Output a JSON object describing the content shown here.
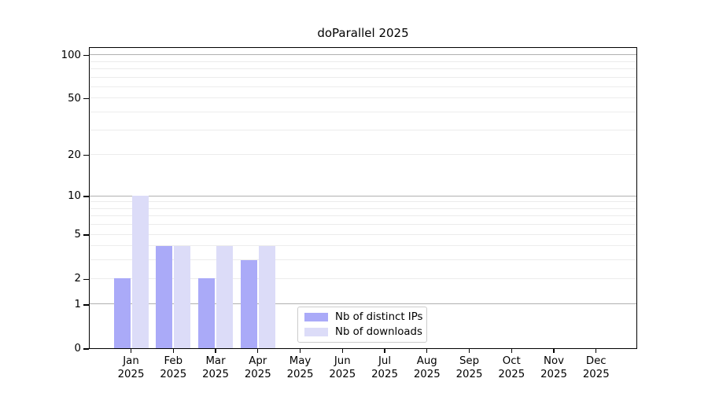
{
  "title": "doParallel 2025",
  "colors": {
    "ips": "#aaaaf8",
    "downloads": "#dcdcf8",
    "grid_major": "#b0b0b0",
    "grid_minor": "#ececec",
    "spine": "#000000"
  },
  "legend": {
    "items": [
      {
        "label": "Nb of distinct IPs",
        "color_key": "ips"
      },
      {
        "label": "Nb of downloads",
        "color_key": "downloads"
      }
    ]
  },
  "chart_data": {
    "type": "bar",
    "title": "doParallel 2025",
    "categories": [
      "Jan",
      "Feb",
      "Mar",
      "Apr",
      "May",
      "Jun",
      "Jul",
      "Aug",
      "Sep",
      "Oct",
      "Nov",
      "Dec"
    ],
    "year": "2025",
    "series": [
      {
        "name": "Nb of distinct IPs",
        "values": [
          2,
          4,
          2,
          3,
          0,
          0,
          0,
          0,
          0,
          0,
          0,
          0
        ]
      },
      {
        "name": "Nb of downloads",
        "values": [
          10,
          4,
          4,
          4,
          0,
          0,
          0,
          0,
          0,
          0,
          0,
          0
        ]
      }
    ],
    "yticks": [
      0,
      1,
      2,
      5,
      10,
      20,
      50,
      100
    ],
    "scale": "log10(1+y)",
    "ylim": [
      0,
      114
    ],
    "grid": {
      "orientation": "horizontal",
      "major": [
        1,
        10,
        100
      ],
      "minor": [
        2,
        3,
        4,
        5,
        6,
        7,
        8,
        9,
        20,
        30,
        40,
        50,
        60,
        70,
        80,
        90
      ]
    },
    "legend_position": "inside lower-center"
  }
}
